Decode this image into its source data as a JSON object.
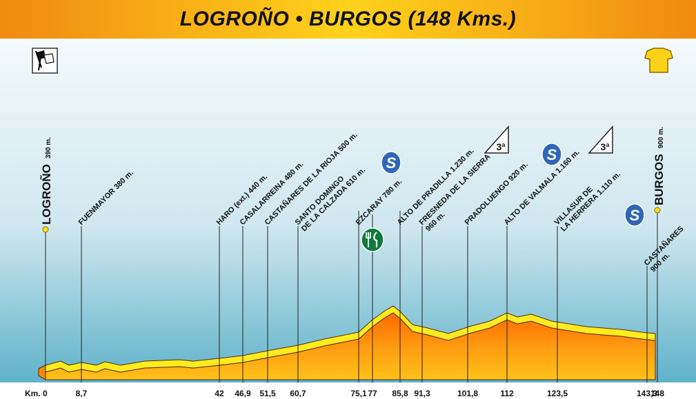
{
  "title": "LOGROÑO • BURGOS (148 Kms.)",
  "km_prefix": "Km. 0",
  "km_marks": [
    "8,7",
    "42",
    "46,9",
    "51,5",
    "60,7",
    "75,1",
    "77",
    "85,8",
    "91,3",
    "101,8",
    "112",
    "123,5",
    "143,3",
    "148"
  ],
  "start": {
    "name": "LOGROÑO",
    "alt": "390 m."
  },
  "finish": {
    "name": "BURGOS",
    "alt": "900 m."
  },
  "waypoints": [
    {
      "id": "fuenmayor",
      "lines": [
        "FUENMAYOR 380 m."
      ]
    },
    {
      "id": "haro",
      "lines": [
        "HARO (ext.) 440 m."
      ]
    },
    {
      "id": "casalarreina",
      "lines": [
        "CASALARREINA 480 m."
      ]
    },
    {
      "id": "castanares-rioja",
      "lines": [
        "CASTAÑARES DE LA RIOJA 500 m."
      ]
    },
    {
      "id": "santo-domingo",
      "lines": [
        "SANTO DOMINGO",
        "DE LA CALZADA 610 m."
      ]
    },
    {
      "id": "ezcaray",
      "lines": [
        "EZCARAY 780 m."
      ]
    },
    {
      "id": "pradilla",
      "lines": [
        "ALTO DE PRADILLA 1.230 m."
      ]
    },
    {
      "id": "fresneda",
      "lines": [
        "FRESNEDA DE LA SIERRA",
        "960 m."
      ]
    },
    {
      "id": "pradoluengo",
      "lines": [
        "PRADOLUENGO 920 m."
      ]
    },
    {
      "id": "valmala",
      "lines": [
        "ALTO DE VALMALA 1.160 m."
      ]
    },
    {
      "id": "villasur",
      "lines": [
        "VILLASUR DE",
        "LA HERRERA 1.110 m."
      ]
    },
    {
      "id": "castanares",
      "lines": [
        "CASTAÑARES",
        "900 m."
      ]
    }
  ],
  "sprint_symbol": "S",
  "climb_category": "3ª",
  "icons": {
    "start_flag": "checkered-flag-icon",
    "finish_jersey": "yellow-jersey-icon",
    "sprint": "sprint-icon",
    "feed_zone": "fork-knife-icon",
    "climb": "mountain-category-icon"
  },
  "colors": {
    "banner": "#f08a10",
    "sky_top": "#f2f9fb",
    "sky_bottom": "#62b4cc",
    "terrain_top": "#ffe21a",
    "terrain_bottom": "#f07a00",
    "sprint": "#2f66b8",
    "feed": "#0f7a3a",
    "dot": "#ffe21a"
  }
}
